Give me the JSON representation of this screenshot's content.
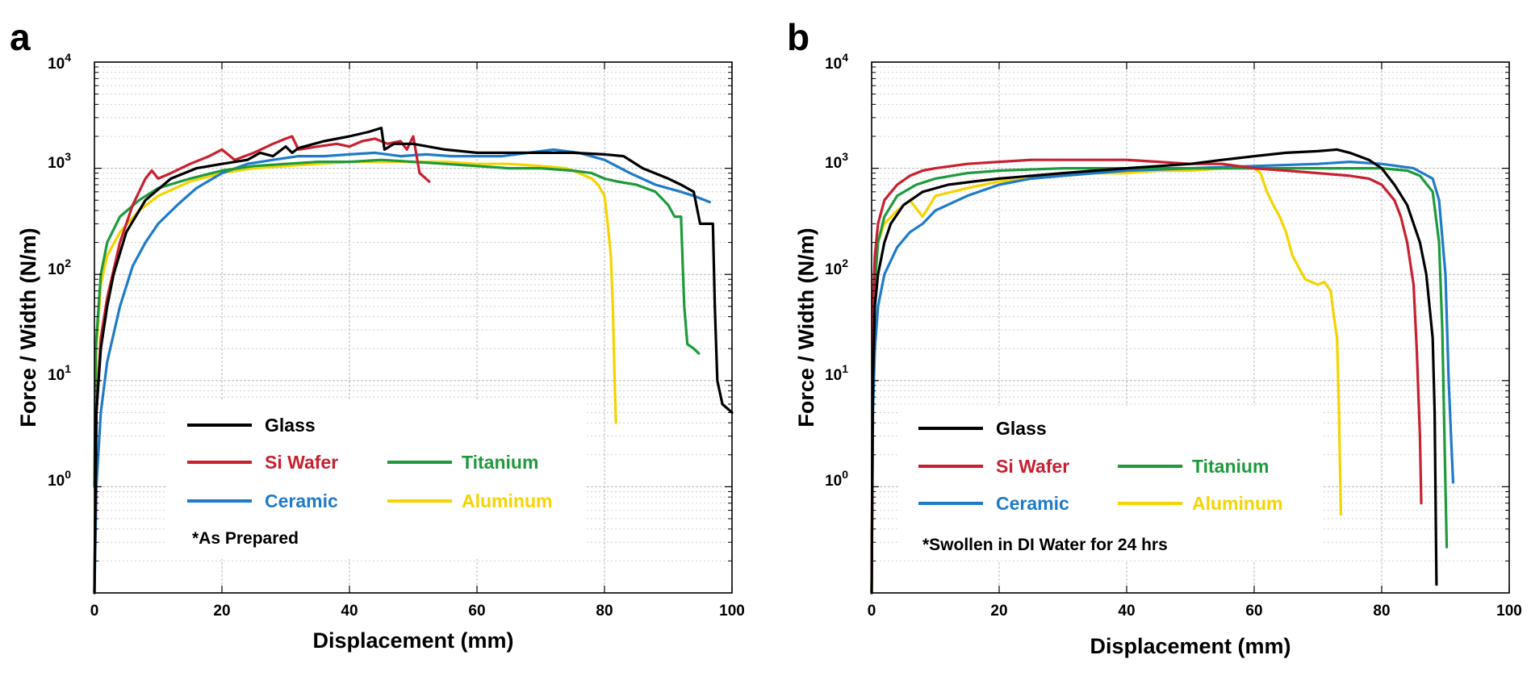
{
  "colors": {
    "Glass": "#000000",
    "Si Wafer": "#c8202f",
    "Titanium": "#1e9a3c",
    "Ceramic": "#1f7bc8",
    "Aluminum": "#f5d400"
  },
  "chart_data": [
    {
      "panel": "a",
      "type": "line",
      "xlabel": "Displacement (mm)",
      "ylabel": "Force / Width (N/m)",
      "xlim": [
        0,
        100
      ],
      "ylim": [
        0.1,
        10000
      ],
      "yscale": "log",
      "grid": true,
      "legend_position": "lower-left",
      "xticks": [
        "0",
        "20",
        "40",
        "60",
        "80",
        "100"
      ],
      "yticks": [
        {
          "base": "10",
          "exp": "0"
        },
        {
          "base": "10",
          "exp": "1"
        },
        {
          "base": "10",
          "exp": "2"
        },
        {
          "base": "10",
          "exp": "3"
        },
        {
          "base": "10",
          "exp": "4"
        }
      ],
      "note": "*As Prepared",
      "series": [
        {
          "name": "Glass",
          "x": [
            0,
            0.3,
            1,
            2,
            3,
            5,
            8,
            12,
            16,
            20,
            24,
            26,
            28,
            30,
            31,
            32,
            36,
            40,
            43,
            45,
            45.5,
            47,
            50,
            55,
            60,
            65,
            70,
            75,
            80,
            83,
            86,
            90,
            92,
            94,
            95,
            97,
            97.3,
            97.7,
            98.5,
            100
          ],
          "y": [
            0.1,
            5,
            20,
            50,
            100,
            250,
            500,
            800,
            1000,
            1100,
            1200,
            1400,
            1300,
            1600,
            1400,
            1550,
            1800,
            2000,
            2200,
            2400,
            1500,
            1700,
            1700,
            1500,
            1400,
            1400,
            1400,
            1400,
            1350,
            1300,
            1000,
            800,
            700,
            600,
            300,
            300,
            50,
            10,
            6,
            5
          ]
        },
        {
          "name": "Si Wafer",
          "x": [
            0,
            0.3,
            1,
            2,
            4,
            6,
            8,
            9,
            10,
            12,
            15,
            18,
            20,
            22,
            25,
            28,
            30,
            31,
            32,
            35,
            38,
            40,
            42,
            44,
            46,
            48,
            49,
            50,
            51,
            52,
            52.5
          ],
          "y": [
            0.1,
            5,
            25,
            60,
            200,
            450,
            800,
            950,
            800,
            900,
            1100,
            1300,
            1500,
            1200,
            1400,
            1700,
            1900,
            2000,
            1500,
            1600,
            1700,
            1600,
            1800,
            1900,
            1700,
            1800,
            1500,
            2000,
            900,
            800,
            750
          ]
        },
        {
          "name": "Titanium",
          "x": [
            0,
            0.2,
            1,
            2,
            4,
            7,
            10,
            15,
            20,
            25,
            30,
            35,
            40,
            45,
            50,
            55,
            60,
            65,
            70,
            75,
            78,
            80,
            82,
            85,
            88,
            90,
            91,
            92,
            92.5,
            93,
            94,
            94.8
          ],
          "y": [
            1,
            20,
            100,
            200,
            350,
            500,
            650,
            800,
            950,
            1050,
            1100,
            1150,
            1150,
            1200,
            1150,
            1100,
            1050,
            1000,
            1000,
            950,
            900,
            800,
            750,
            700,
            600,
            450,
            350,
            350,
            50,
            22,
            20,
            18
          ]
        },
        {
          "name": "Ceramic",
          "x": [
            0,
            0.3,
            1,
            2,
            4,
            6,
            8,
            10,
            13,
            16,
            20,
            24,
            28,
            32,
            36,
            40,
            44,
            48,
            52,
            56,
            60,
            64,
            68,
            72,
            76,
            80,
            84,
            88,
            92,
            94,
            96.5
          ],
          "y": [
            0.1,
            1,
            5,
            15,
            50,
            120,
            200,
            300,
            450,
            650,
            900,
            1100,
            1200,
            1300,
            1300,
            1350,
            1400,
            1300,
            1350,
            1300,
            1300,
            1300,
            1400,
            1500,
            1400,
            1200,
            900,
            700,
            600,
            550,
            480
          ]
        },
        {
          "name": "Aluminum",
          "x": [
            0,
            0.3,
            1,
            2,
            4,
            7,
            10,
            15,
            20,
            25,
            30,
            35,
            40,
            45,
            50,
            55,
            60,
            65,
            70,
            74,
            76,
            78,
            79,
            80,
            80.5,
            81,
            81.3,
            81.6,
            81.8
          ],
          "y": [
            0.1,
            20,
            80,
            150,
            250,
            400,
            550,
            750,
            900,
            1000,
            1050,
            1100,
            1150,
            1150,
            1150,
            1150,
            1100,
            1100,
            1050,
            1000,
            900,
            800,
            700,
            550,
            300,
            150,
            50,
            10,
            4
          ]
        }
      ]
    },
    {
      "panel": "b",
      "type": "line",
      "xlabel": "Displacement (mm)",
      "ylabel": "Force / Width (N/m)",
      "xlim": [
        0,
        100
      ],
      "ylim": [
        0.1,
        10000
      ],
      "yscale": "log",
      "grid": true,
      "legend_position": "lower-left",
      "xticks": [
        "0",
        "20",
        "40",
        "60",
        "80",
        "100"
      ],
      "yticks": [
        {
          "base": "10",
          "exp": "0"
        },
        {
          "base": "10",
          "exp": "1"
        },
        {
          "base": "10",
          "exp": "2"
        },
        {
          "base": "10",
          "exp": "3"
        },
        {
          "base": "10",
          "exp": "4"
        }
      ],
      "note": "*Swollen in DI Water for 24 hrs",
      "series": [
        {
          "name": "Glass",
          "x": [
            0,
            0.2,
            0.5,
            1,
            2,
            3,
            5,
            8,
            12,
            16,
            20,
            30,
            40,
            50,
            55,
            60,
            65,
            70,
            73,
            74,
            75,
            78,
            80,
            82,
            84,
            86,
            87,
            88,
            88.3,
            88.6
          ],
          "y": [
            0.1,
            10,
            50,
            100,
            200,
            300,
            450,
            600,
            700,
            750,
            800,
            900,
            1000,
            1100,
            1200,
            1300,
            1400,
            1450,
            1500,
            1450,
            1400,
            1200,
            1000,
            700,
            450,
            200,
            100,
            25,
            5,
            0.12
          ]
        },
        {
          "name": "Si Wafer",
          "x": [
            0,
            0.2,
            0.5,
            1,
            2,
            4,
            6,
            8,
            10,
            15,
            20,
            25,
            30,
            35,
            40,
            45,
            50,
            55,
            60,
            65,
            70,
            75,
            78,
            80,
            82,
            83,
            84,
            85,
            85.5,
            86,
            86.2
          ],
          "y": [
            0.1,
            50,
            150,
            300,
            500,
            700,
            850,
            950,
            1000,
            1100,
            1150,
            1200,
            1200,
            1200,
            1200,
            1150,
            1100,
            1100,
            1000,
            950,
            900,
            850,
            800,
            700,
            500,
            350,
            200,
            80,
            20,
            3,
            0.7
          ]
        },
        {
          "name": "Titanium",
          "x": [
            0,
            0.2,
            0.5,
            1,
            2,
            4,
            7,
            10,
            15,
            20,
            30,
            40,
            50,
            60,
            70,
            80,
            84,
            86,
            88,
            89,
            89.5,
            90,
            90.2
          ],
          "y": [
            0.1,
            20,
            80,
            200,
            350,
            550,
            700,
            800,
            900,
            950,
            1000,
            1000,
            1000,
            1000,
            1000,
            1000,
            950,
            850,
            600,
            200,
            30,
            1,
            0.27
          ]
        },
        {
          "name": "Ceramic",
          "x": [
            0,
            0.2,
            0.5,
            1,
            2,
            4,
            6,
            8,
            10,
            15,
            20,
            25,
            30,
            40,
            50,
            60,
            70,
            75,
            80,
            85,
            88,
            89,
            90,
            90.5,
            91,
            91.2
          ],
          "y": [
            0.1,
            5,
            20,
            50,
            100,
            180,
            250,
            300,
            400,
            550,
            700,
            800,
            850,
            950,
            1000,
            1050,
            1100,
            1150,
            1100,
            1000,
            800,
            500,
            100,
            10,
            2,
            1.1
          ]
        },
        {
          "name": "Aluminum",
          "x": [
            0,
            0.2,
            0.5,
            1,
            2,
            4,
            6,
            8,
            10,
            15,
            20,
            25,
            30,
            35,
            40,
            45,
            50,
            55,
            60,
            61,
            62,
            63,
            64,
            65,
            66,
            68,
            70,
            71,
            72,
            72.5,
            73,
            73.3,
            73.6
          ],
          "y": [
            0.1,
            20,
            100,
            200,
            300,
            400,
            500,
            350,
            550,
            650,
            750,
            800,
            850,
            900,
            900,
            950,
            950,
            1000,
            1000,
            900,
            600,
            450,
            350,
            250,
            150,
            90,
            80,
            85,
            70,
            40,
            25,
            5,
            0.55
          ]
        }
      ]
    }
  ],
  "panel_a": {
    "letter": "a",
    "legend": {
      "glass": "Glass",
      "si": "Si Wafer",
      "ti": "Titanium",
      "ceramic": "Ceramic",
      "al": "Aluminum"
    },
    "note": "*As Prepared",
    "xlabel": "Displacement (mm)",
    "ylabel": "Force / Width (N/m)"
  },
  "panel_b": {
    "letter": "b",
    "legend": {
      "glass": "Glass",
      "si": "Si Wafer",
      "ti": "Titanium",
      "ceramic": "Ceramic",
      "al": "Aluminum"
    },
    "note": "*Swollen in DI Water for 24 hrs",
    "xlabel": "Displacement (mm)",
    "ylabel": "Force / Width (N/m)"
  }
}
